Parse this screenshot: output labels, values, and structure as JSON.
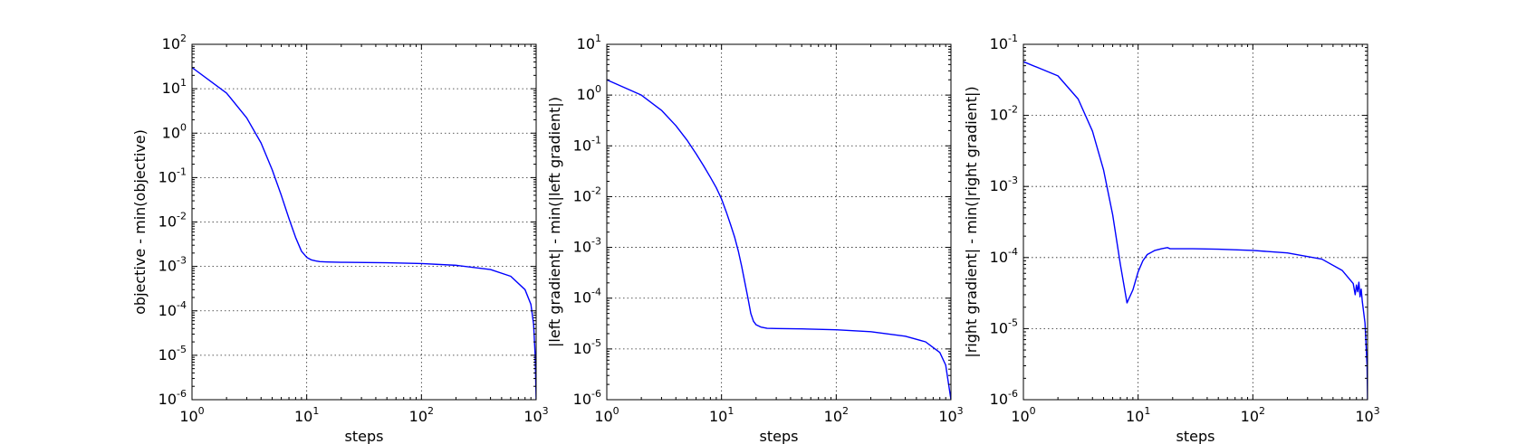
{
  "chart_data": [
    {
      "type": "line",
      "title": "",
      "xlabel": "steps",
      "ylabel": "objective - min(objective)",
      "x_scale": "log",
      "y_scale": "log",
      "xlim": [
        1,
        1000
      ],
      "ylim": [
        1e-06,
        100
      ],
      "grid": true,
      "x_ticks": [
        {
          "base": "10",
          "exp": "0",
          "value": 1
        },
        {
          "base": "10",
          "exp": "1",
          "value": 10
        },
        {
          "base": "10",
          "exp": "2",
          "value": 100
        },
        {
          "base": "10",
          "exp": "3",
          "value": 1000
        }
      ],
      "y_ticks": [
        {
          "base": "10",
          "exp": "-6",
          "value": 1e-06
        },
        {
          "base": "10",
          "exp": "-5",
          "value": 1e-05
        },
        {
          "base": "10",
          "exp": "-4",
          "value": 0.0001
        },
        {
          "base": "10",
          "exp": "-3",
          "value": 0.001
        },
        {
          "base": "10",
          "exp": "-2",
          "value": 0.01
        },
        {
          "base": "10",
          "exp": "-1",
          "value": 0.1
        },
        {
          "base": "10",
          "exp": "0",
          "value": 1
        },
        {
          "base": "10",
          "exp": "1",
          "value": 10
        },
        {
          "base": "10",
          "exp": "2",
          "value": 100
        }
      ],
      "series": [
        {
          "color": "#0000ff",
          "x": [
            1,
            2,
            3,
            4,
            5,
            6,
            7,
            8,
            9,
            10,
            11,
            12,
            13,
            15,
            20,
            50,
            100,
            200,
            400,
            600,
            800,
            900,
            950,
            980,
            1000
          ],
          "y": [
            30,
            8,
            2.2,
            0.6,
            0.15,
            0.04,
            0.012,
            0.0045,
            0.0022,
            0.0016,
            0.0014,
            0.00133,
            0.00128,
            0.00126,
            0.00124,
            0.00121,
            0.00116,
            0.00106,
            0.00085,
            0.0006,
            0.0003,
            0.00014,
            5e-05,
            1e-05,
            1e-06
          ]
        }
      ]
    },
    {
      "type": "line",
      "title": "",
      "xlabel": "steps",
      "ylabel": "|left gradient| - min(|left gradient|)",
      "x_scale": "log",
      "y_scale": "log",
      "xlim": [
        1,
        1000
      ],
      "ylim": [
        1e-06,
        10
      ],
      "grid": true,
      "x_ticks": [
        {
          "base": "10",
          "exp": "0",
          "value": 1
        },
        {
          "base": "10",
          "exp": "1",
          "value": 10
        },
        {
          "base": "10",
          "exp": "2",
          "value": 100
        },
        {
          "base": "10",
          "exp": "3",
          "value": 1000
        }
      ],
      "y_ticks": [
        {
          "base": "10",
          "exp": "-6",
          "value": 1e-06
        },
        {
          "base": "10",
          "exp": "-5",
          "value": 1e-05
        },
        {
          "base": "10",
          "exp": "-4",
          "value": 0.0001
        },
        {
          "base": "10",
          "exp": "-3",
          "value": 0.001
        },
        {
          "base": "10",
          "exp": "-2",
          "value": 0.01
        },
        {
          "base": "10",
          "exp": "-1",
          "value": 0.1
        },
        {
          "base": "10",
          "exp": "0",
          "value": 1
        },
        {
          "base": "10",
          "exp": "1",
          "value": 10
        }
      ],
      "series": [
        {
          "color": "#0000ff",
          "x": [
            1,
            2,
            3,
            4,
            5,
            6,
            7,
            8,
            9,
            10,
            11,
            12,
            13,
            14,
            15,
            16,
            17,
            18,
            19,
            20,
            22,
            25,
            30,
            50,
            100,
            200,
            400,
            600,
            800,
            900,
            1000
          ],
          "y": [
            2.0,
            1.0,
            0.5,
            0.25,
            0.13,
            0.07,
            0.04,
            0.024,
            0.015,
            0.009,
            0.005,
            0.0028,
            0.0016,
            0.00085,
            0.00042,
            0.0002,
            0.0001,
            5e-05,
            3.5e-05,
            3e-05,
            2.7e-05,
            2.55e-05,
            2.52e-05,
            2.48e-05,
            2.38e-05,
            2.18e-05,
            1.78e-05,
            1.38e-05,
            8.5e-06,
            4.8e-06,
            1e-06
          ]
        }
      ]
    },
    {
      "type": "line",
      "title": "",
      "xlabel": "steps",
      "ylabel": "|right gradient| - min(|right gradient|)",
      "x_scale": "log",
      "y_scale": "log",
      "xlim": [
        1,
        1000
      ],
      "ylim": [
        1e-06,
        0.1
      ],
      "grid": true,
      "x_ticks": [
        {
          "base": "10",
          "exp": "0",
          "value": 1
        },
        {
          "base": "10",
          "exp": "1",
          "value": 10
        },
        {
          "base": "10",
          "exp": "2",
          "value": 100
        },
        {
          "base": "10",
          "exp": "3",
          "value": 1000
        }
      ],
      "y_ticks": [
        {
          "base": "10",
          "exp": "-6",
          "value": 1e-06
        },
        {
          "base": "10",
          "exp": "-5",
          "value": 1e-05
        },
        {
          "base": "10",
          "exp": "-4",
          "value": 0.0001
        },
        {
          "base": "10",
          "exp": "-3",
          "value": 0.001
        },
        {
          "base": "10",
          "exp": "-2",
          "value": 0.01
        },
        {
          "base": "10",
          "exp": "-1",
          "value": 0.1
        }
      ],
      "series": [
        {
          "color": "#0000ff",
          "x": [
            1,
            2,
            3,
            4,
            5,
            6,
            7,
            8,
            9,
            10,
            11,
            12,
            14,
            16,
            18,
            19,
            20,
            30,
            50,
            100,
            200,
            400,
            600,
            750,
            780,
            800,
            820,
            840,
            860,
            880,
            900,
            950,
            990,
            1000
          ],
          "y": [
            0.057,
            0.036,
            0.017,
            0.006,
            0.0017,
            0.0004,
            8e-05,
            2.3e-05,
            3.5e-05,
            6.3e-05,
            9e-05,
            0.00011,
            0.000126,
            0.000133,
            0.000138,
            0.000133,
            0.000133,
            0.000133,
            0.000131,
            0.000126,
            0.000116,
            9.5e-05,
            6.6e-05,
            4.3e-05,
            3e-05,
            4.1e-05,
            3.3e-05,
            4.5e-05,
            2.8e-05,
            3.6e-05,
            2.4e-05,
            1.2e-05,
            3e-06,
            1e-06
          ]
        }
      ]
    }
  ]
}
